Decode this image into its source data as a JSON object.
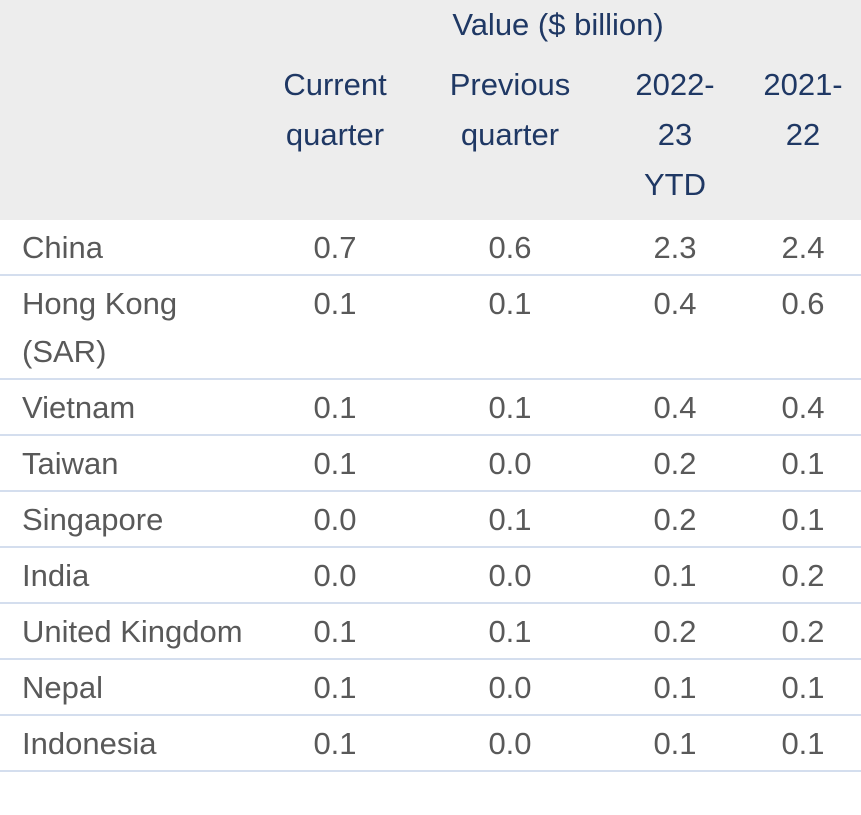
{
  "table": {
    "group_header": "Value ($ billion)",
    "columns": [
      "Current quarter",
      "Previous quarter",
      "2022-23 YTD",
      "2021-22"
    ],
    "rows": [
      [
        "China",
        "0.7",
        "0.6",
        "2.3",
        "2.4"
      ],
      [
        "Hong Kong (SAR)",
        "0.1",
        "0.1",
        "0.4",
        "0.6"
      ],
      [
        "Vietnam",
        "0.1",
        "0.1",
        "0.4",
        "0.4"
      ],
      [
        "Taiwan",
        "0.1",
        "0.0",
        "0.2",
        "0.1"
      ],
      [
        "Singapore",
        "0.0",
        "0.1",
        "0.2",
        "0.1"
      ],
      [
        "India",
        "0.0",
        "0.0",
        "0.1",
        "0.2"
      ],
      [
        "United Kingdom",
        "0.1",
        "0.1",
        "0.2",
        "0.2"
      ],
      [
        "Nepal",
        "0.1",
        "0.0",
        "0.1",
        "0.1"
      ],
      [
        "Indonesia",
        "0.1",
        "0.0",
        "0.1",
        "0.1"
      ]
    ]
  }
}
